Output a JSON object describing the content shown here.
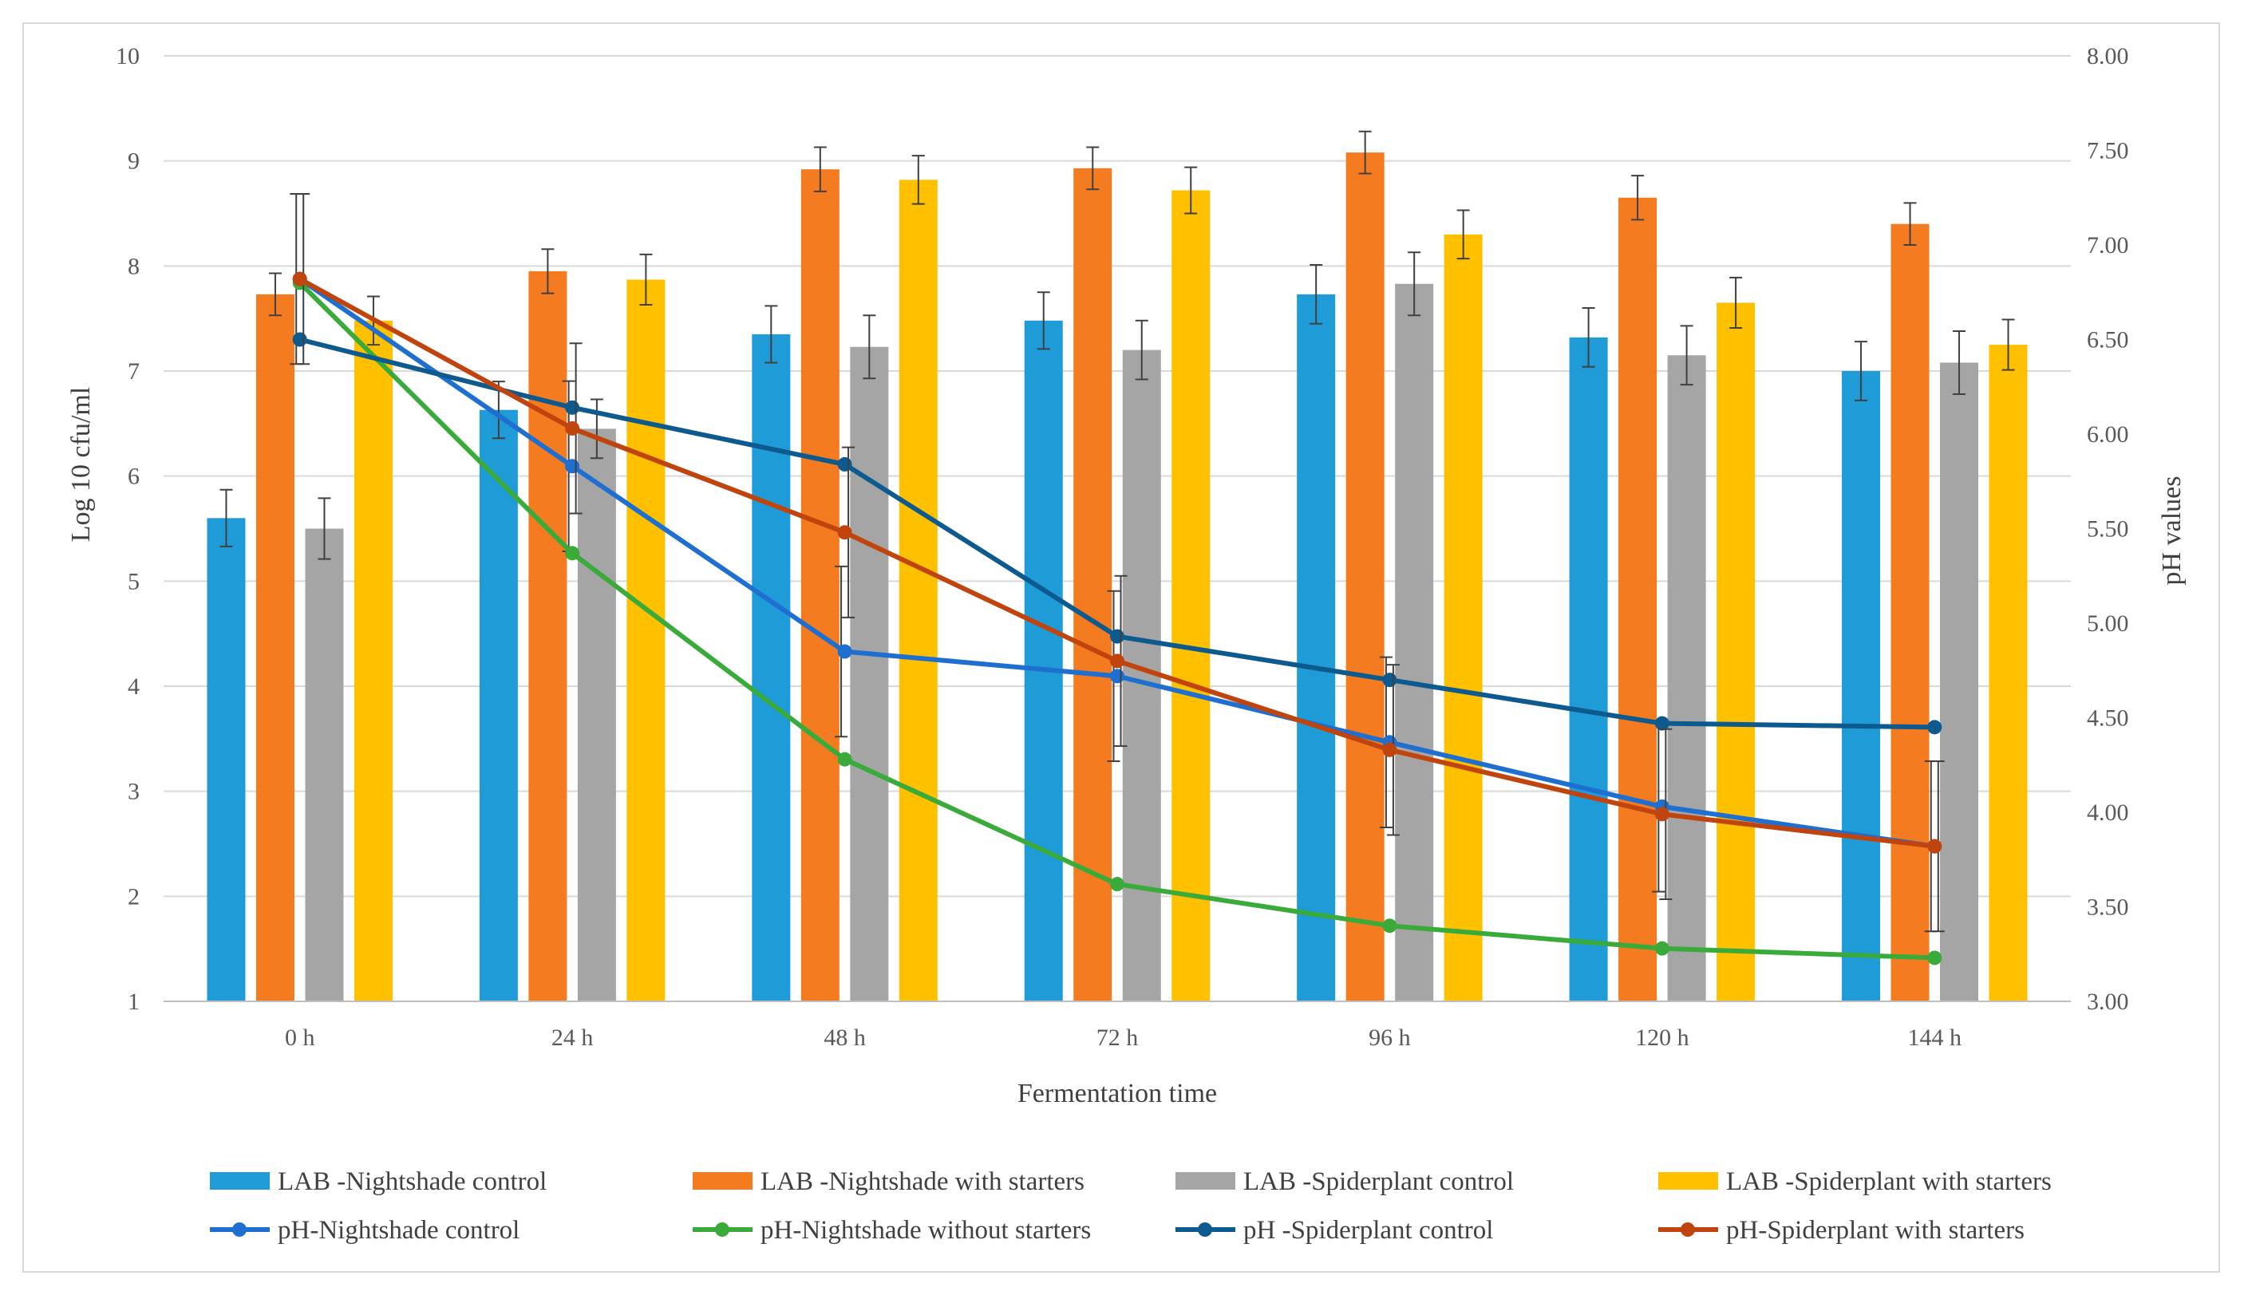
{
  "chart_data": {
    "type": "bar",
    "title": "",
    "xlabel": "Fermentation time",
    "ylabel": "Log 10 cfu/ml",
    "y2label": "pH values",
    "ylim": [
      1,
      10
    ],
    "y2lim": [
      3.0,
      8.0
    ],
    "categories": [
      "0 h",
      "24 h",
      "48 h",
      "72 h",
      "96 h",
      "120 h",
      "144 h"
    ],
    "yticks": [
      "1",
      "2",
      "3",
      "4",
      "5",
      "6",
      "7",
      "8",
      "9",
      "10"
    ],
    "y2ticks": [
      "3.00",
      "3.50",
      "4.00",
      "4.50",
      "5.00",
      "5.50",
      "6.00",
      "6.50",
      "7.00",
      "7.50",
      "8.00"
    ],
    "grid": true,
    "legend_position": "bottom",
    "bar_series": [
      {
        "name": "LAB -Nightshade control",
        "color": "#1f9bd7",
        "values": [
          5.6,
          6.63,
          7.35,
          7.48,
          7.73,
          7.32,
          7.0
        ],
        "errors": [
          0.27,
          0.27,
          0.27,
          0.27,
          0.28,
          0.28,
          0.28
        ]
      },
      {
        "name": "LAB -Nightshade with starters",
        "color": "#f47b20",
        "values": [
          7.73,
          7.95,
          8.92,
          8.93,
          9.08,
          8.65,
          8.4
        ],
        "errors": [
          0.2,
          0.21,
          0.21,
          0.2,
          0.2,
          0.21,
          0.2
        ]
      },
      {
        "name": "LAB -Spiderplant control",
        "color": "#a5a5a5",
        "values": [
          5.5,
          6.45,
          7.23,
          7.2,
          7.83,
          7.15,
          7.08
        ],
        "errors": [
          0.29,
          0.28,
          0.3,
          0.28,
          0.3,
          0.28,
          0.3
        ]
      },
      {
        "name": "LAB -Spiderplant with starters",
        "color": "#ffc000",
        "values": [
          7.48,
          7.87,
          8.82,
          8.72,
          8.3,
          7.65,
          7.25
        ],
        "errors": [
          0.23,
          0.24,
          0.23,
          0.22,
          0.23,
          0.24,
          0.24
        ]
      }
    ],
    "line_series": [
      {
        "name": "pH-Nightshade control",
        "color": "#1e6fd0",
        "values": [
          6.82,
          5.83,
          4.85,
          4.72,
          4.37,
          4.03,
          3.82
        ],
        "error": 0.45
      },
      {
        "name": "pH-Nightshade without starters",
        "color": "#3aab3a",
        "values": [
          6.8,
          5.37,
          4.28,
          3.62,
          3.4,
          3.28,
          3.23
        ],
        "error": 0.0
      },
      {
        "name": "pH -Spiderplant control",
        "color": "#0d5a8f",
        "values": [
          6.5,
          6.14,
          5.84,
          4.93,
          4.7,
          4.47,
          4.45
        ],
        "error": 0.0
      },
      {
        "name": "pH-Spiderplant with starters",
        "color": "#c0440e",
        "values": [
          6.82,
          6.03,
          5.48,
          4.8,
          4.33,
          3.99,
          3.82
        ],
        "error": 0.45
      }
    ]
  }
}
